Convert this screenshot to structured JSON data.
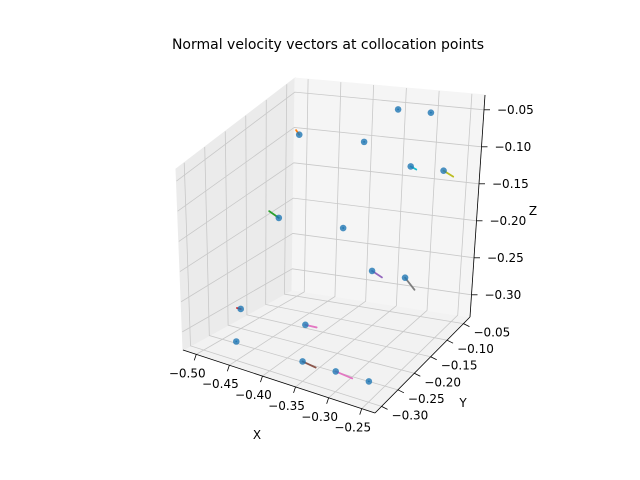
{
  "chart_data": {
    "type": "scatter",
    "projection": "3d",
    "title": "Normal velocity vectors at collocation points",
    "xlabel": "X",
    "ylabel": "Y",
    "zlabel": "Z",
    "xlim": [
      -0.52,
      -0.23
    ],
    "ylim": [
      -0.32,
      -0.03
    ],
    "zlim": [
      -0.33,
      -0.03
    ],
    "xticks": [
      -0.5,
      -0.45,
      -0.4,
      -0.35,
      -0.3,
      -0.25
    ],
    "xticklabels": [
      "−0.50",
      "−0.45",
      "−0.40",
      "−0.35",
      "−0.30",
      "−0.25"
    ],
    "yticks": [
      -0.3,
      -0.25,
      -0.2,
      -0.15,
      -0.1,
      -0.05
    ],
    "yticklabels": [
      "−0.30",
      "−0.25",
      "−0.20",
      "−0.15",
      "−0.10",
      "−0.05"
    ],
    "zticks": [
      -0.3,
      -0.25,
      -0.2,
      -0.15,
      -0.1,
      -0.05
    ],
    "zticklabels": [
      "−0.30",
      "−0.25",
      "−0.20",
      "−0.15",
      "−0.10",
      "−0.05"
    ],
    "grid": true,
    "marker_color": "#1f77b4",
    "points": [
      {
        "x": -0.45,
        "y": -0.3,
        "z": -0.3
      },
      {
        "x": -0.35,
        "y": -0.3,
        "z": -0.3
      },
      {
        "x": -0.3,
        "y": -0.3,
        "z": -0.3
      },
      {
        "x": -0.25,
        "y": -0.3,
        "z": -0.3
      },
      {
        "x": -0.5,
        "y": -0.2,
        "z": -0.3
      },
      {
        "x": -0.4,
        "y": -0.2,
        "z": -0.3
      },
      {
        "x": -0.3,
        "y": -0.2,
        "z": -0.2
      },
      {
        "x": -0.25,
        "y": -0.2,
        "z": -0.2
      },
      {
        "x": -0.5,
        "y": -0.1,
        "z": -0.2
      },
      {
        "x": -0.4,
        "y": -0.1,
        "z": -0.2
      },
      {
        "x": -0.3,
        "y": -0.1,
        "z": -0.1
      },
      {
        "x": -0.25,
        "y": -0.1,
        "z": -0.1
      },
      {
        "x": -0.5,
        "y": -0.05,
        "z": -0.1
      },
      {
        "x": -0.4,
        "y": -0.05,
        "z": -0.1
      },
      {
        "x": -0.35,
        "y": -0.05,
        "z": -0.05
      },
      {
        "x": -0.3,
        "y": -0.05,
        "z": -0.05
      }
    ],
    "vectors": [
      {
        "x": -0.45,
        "y": -0.3,
        "z": -0.3,
        "u": 0,
        "v": 0,
        "w": 0,
        "color": "#1f77b4"
      },
      {
        "x": -0.35,
        "y": -0.3,
        "z": -0.3,
        "u": 0.012,
        "v": 0.015,
        "w": -0.012,
        "color": "#8c564b"
      },
      {
        "x": -0.3,
        "y": -0.3,
        "z": -0.3,
        "u": 0.015,
        "v": 0.02,
        "w": -0.015,
        "color": "#e377c2"
      },
      {
        "x": -0.25,
        "y": -0.3,
        "z": -0.3,
        "u": 0,
        "v": 0,
        "w": 0,
        "color": "#1f77b4"
      },
      {
        "x": -0.5,
        "y": -0.2,
        "z": -0.3,
        "u": 0,
        "v": -0.01,
        "w": 0.005,
        "color": "#d62728"
      },
      {
        "x": -0.4,
        "y": -0.2,
        "z": -0.3,
        "u": 0.012,
        "v": 0.01,
        "w": -0.005,
        "color": "#e377c2"
      },
      {
        "x": -0.3,
        "y": -0.2,
        "z": -0.2,
        "u": 0.01,
        "v": 0.01,
        "w": -0.012,
        "color": "#9467bd"
      },
      {
        "x": -0.25,
        "y": -0.2,
        "z": -0.2,
        "u": 0.01,
        "v": 0.01,
        "w": -0.02,
        "color": "#7f7f7f"
      },
      {
        "x": -0.5,
        "y": -0.1,
        "z": -0.2,
        "u": -0.012,
        "v": -0.005,
        "w": 0.01,
        "color": "#2ca02c"
      },
      {
        "x": -0.4,
        "y": -0.1,
        "z": -0.2,
        "u": 0,
        "v": 0,
        "w": 0,
        "color": "#1f77b4"
      },
      {
        "x": -0.3,
        "y": -0.1,
        "z": -0.1,
        "u": 0.006,
        "v": 0.005,
        "w": -0.006,
        "color": "#17becf"
      },
      {
        "x": -0.25,
        "y": -0.1,
        "z": -0.1,
        "u": 0.01,
        "v": 0.01,
        "w": -0.012,
        "color": "#bcbd22"
      },
      {
        "x": -0.5,
        "y": -0.05,
        "z": -0.1,
        "u": -0.005,
        "v": 0,
        "w": 0.006,
        "color": "#ff7f0e"
      },
      {
        "x": -0.4,
        "y": -0.05,
        "z": -0.1,
        "u": 0,
        "v": 0,
        "w": 0,
        "color": "#1f77b4"
      },
      {
        "x": -0.35,
        "y": -0.05,
        "z": -0.05,
        "u": 0,
        "v": 0,
        "w": 0,
        "color": "#1f77b4"
      },
      {
        "x": -0.3,
        "y": -0.05,
        "z": -0.05,
        "u": 0,
        "v": 0,
        "w": 0,
        "color": "#1f77b4"
      }
    ]
  }
}
